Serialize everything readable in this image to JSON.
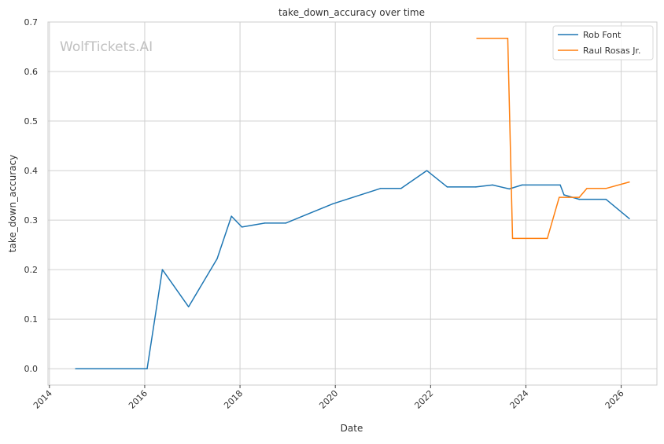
{
  "chart_data": {
    "type": "line",
    "title": "take_down_accuracy over time",
    "xlabel": "Date",
    "ylabel": "take_down_accuracy",
    "watermark": "WolfTickets.AI",
    "x_ticks": [
      "2014",
      "2016",
      "2018",
      "2020",
      "2022",
      "2024",
      "2026"
    ],
    "y_ticks": [
      "0.0",
      "0.1",
      "0.2",
      "0.3",
      "0.4",
      "0.5",
      "0.6",
      "0.7"
    ],
    "xlim": [
      2013.97,
      2026.75
    ],
    "ylim": [
      -0.033,
      0.7
    ],
    "grid": true,
    "legend_position": "top-right",
    "series": [
      {
        "name": "Rob Font",
        "color": "#1f77b4",
        "points": [
          {
            "x": 2014.55,
            "y": 0.0
          },
          {
            "x": 2016.05,
            "y": 0.0
          },
          {
            "x": 2016.37,
            "y": 0.2
          },
          {
            "x": 2016.92,
            "y": 0.125
          },
          {
            "x": 2017.52,
            "y": 0.222
          },
          {
            "x": 2017.82,
            "y": 0.308
          },
          {
            "x": 2018.04,
            "y": 0.286
          },
          {
            "x": 2018.52,
            "y": 0.294
          },
          {
            "x": 2018.96,
            "y": 0.294
          },
          {
            "x": 2019.95,
            "y": 0.333
          },
          {
            "x": 2020.95,
            "y": 0.364
          },
          {
            "x": 2021.38,
            "y": 0.364
          },
          {
            "x": 2021.92,
            "y": 0.4
          },
          {
            "x": 2022.35,
            "y": 0.367
          },
          {
            "x": 2022.95,
            "y": 0.367
          },
          {
            "x": 2023.3,
            "y": 0.371
          },
          {
            "x": 2023.65,
            "y": 0.363
          },
          {
            "x": 2023.92,
            "y": 0.371
          },
          {
            "x": 2024.72,
            "y": 0.371
          },
          {
            "x": 2024.8,
            "y": 0.351
          },
          {
            "x": 2025.12,
            "y": 0.342
          },
          {
            "x": 2025.68,
            "y": 0.342
          },
          {
            "x": 2026.17,
            "y": 0.303
          }
        ]
      },
      {
        "name": "Raul Rosas Jr.",
        "color": "#ff7f0e",
        "points": [
          {
            "x": 2022.97,
            "y": 0.667
          },
          {
            "x": 2023.62,
            "y": 0.667
          },
          {
            "x": 2023.72,
            "y": 0.263
          },
          {
            "x": 2024.45,
            "y": 0.263
          },
          {
            "x": 2024.7,
            "y": 0.346
          },
          {
            "x": 2025.12,
            "y": 0.346
          },
          {
            "x": 2025.28,
            "y": 0.364
          },
          {
            "x": 2025.68,
            "y": 0.364
          },
          {
            "x": 2026.17,
            "y": 0.377
          }
        ]
      }
    ]
  }
}
